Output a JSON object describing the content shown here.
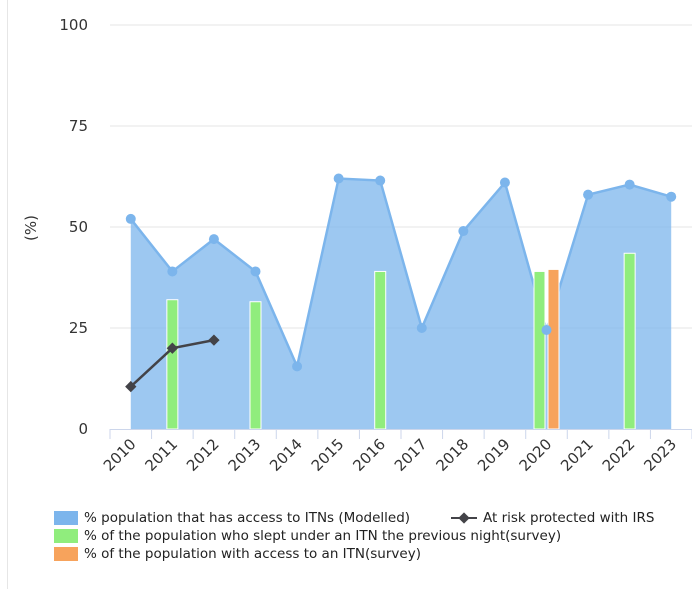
{
  "chart_data": {
    "type": "area",
    "title": "",
    "xlabel": "",
    "ylabel": "(%)",
    "ylim": [
      0,
      100
    ],
    "yticks": [
      0,
      25,
      50,
      75,
      100
    ],
    "grid": true,
    "categories": [
      "2010",
      "2011",
      "2012",
      "2013",
      "2014",
      "2015",
      "2016",
      "2017",
      "2018",
      "2019",
      "2020",
      "2021",
      "2022",
      "2023"
    ],
    "series": [
      {
        "name": "% population that has access to ITNs (Modelled)",
        "type": "area",
        "color": "#7cb5ec",
        "values": [
          52,
          39,
          47,
          39,
          15.5,
          62,
          61.5,
          25,
          49,
          61,
          24.5,
          58,
          60.5,
          57.5
        ]
      },
      {
        "name": "% of the population who slept under an ITN the previous night(survey)",
        "type": "bar",
        "color": "#90ed7d",
        "values": [
          null,
          32,
          null,
          31.5,
          null,
          null,
          39,
          null,
          null,
          null,
          39,
          null,
          43.5,
          null
        ]
      },
      {
        "name": "% of the population with access to an ITN(survey)",
        "type": "bar",
        "color": "#f7a35c",
        "values": [
          null,
          null,
          null,
          null,
          null,
          null,
          null,
          null,
          null,
          null,
          39.5,
          null,
          null,
          null
        ]
      },
      {
        "name": "At risk protected with IRS",
        "type": "line",
        "color": "#434348",
        "values": [
          10.5,
          20,
          22,
          null,
          null,
          null,
          null,
          null,
          null,
          null,
          null,
          null,
          null,
          null
        ]
      }
    ],
    "legend_position": "bottom"
  }
}
